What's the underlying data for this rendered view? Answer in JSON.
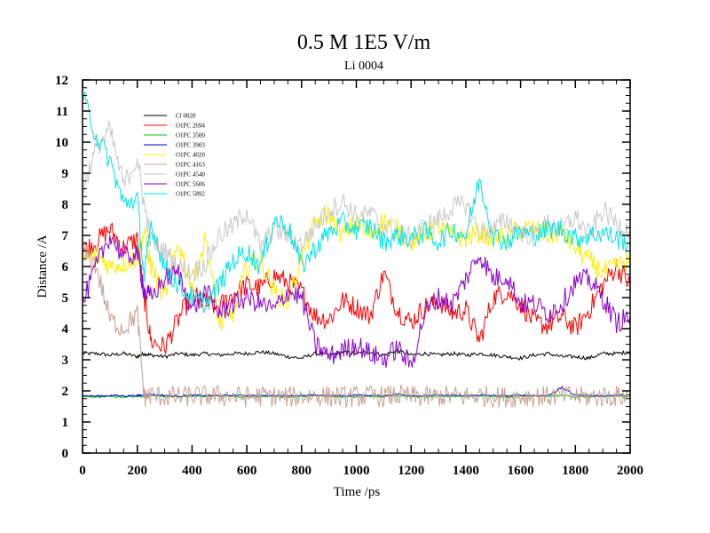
{
  "chart_data": {
    "type": "line",
    "title": "0.5 M 1E5 V/m",
    "subtitle": "Li 0004",
    "xlabel": "Time /ps",
    "ylabel": "Distance /A",
    "xlim": [
      0,
      2000
    ],
    "ylim": [
      0,
      12
    ],
    "xticks": [
      0,
      200,
      400,
      600,
      800,
      1000,
      1200,
      1400,
      1600,
      1800,
      2000
    ],
    "yticks": [
      0,
      1,
      2,
      3,
      4,
      5,
      6,
      7,
      8,
      9,
      10,
      11,
      12
    ],
    "grid": false,
    "legend_position": "top-left",
    "x": [
      0,
      50,
      100,
      150,
      200,
      225,
      250,
      300,
      350,
      400,
      450,
      500,
      550,
      600,
      650,
      700,
      750,
      800,
      850,
      900,
      950,
      1000,
      1050,
      1100,
      1150,
      1200,
      1250,
      1300,
      1350,
      1400,
      1450,
      1500,
      1550,
      1600,
      1650,
      1700,
      1750,
      1800,
      1850,
      1900,
      1950,
      2000
    ],
    "series": [
      {
        "name": "Cl 0028",
        "color": "#000000",
        "values": [
          3.2,
          3.2,
          3.15,
          3.2,
          3.1,
          3.2,
          3.15,
          3.1,
          3.2,
          3.15,
          3.2,
          3.15,
          3.2,
          3.2,
          3.25,
          3.2,
          3.1,
          3.05,
          3.2,
          3.15,
          3.25,
          3.2,
          3.25,
          3.15,
          3.3,
          3.15,
          3.2,
          3.15,
          3.2,
          3.15,
          3.2,
          3.15,
          3.1,
          3.05,
          3.15,
          3.2,
          3.1,
          3.1,
          3.05,
          3.2,
          3.2,
          3.25
        ]
      },
      {
        "name": "O1PC 2694",
        "color": "#ff0000",
        "values": [
          6.5,
          6.8,
          7.2,
          6.6,
          6.9,
          5.0,
          3.6,
          3.4,
          4.3,
          5.1,
          4.8,
          4.7,
          5.1,
          5.4,
          5.3,
          5.7,
          5.5,
          5.2,
          4.4,
          4.3,
          4.9,
          4.7,
          4.4,
          5.8,
          4.6,
          4.2,
          4.7,
          4.9,
          4.5,
          4.6,
          3.6,
          5.0,
          5.2,
          4.8,
          4.2,
          4.1,
          4.4,
          4.0,
          4.6,
          5.4,
          6.0,
          5.4
        ]
      },
      {
        "name": "O1PC 3500",
        "color": "#00cc00",
        "values": [
          1.82,
          1.8,
          1.82,
          1.8,
          1.82,
          1.82,
          1.85,
          1.82,
          1.8,
          1.83,
          1.82,
          1.85,
          1.82,
          1.8,
          1.83,
          1.82,
          1.8,
          1.82,
          1.85,
          1.82,
          1.8,
          1.82,
          1.83,
          1.82,
          1.85,
          1.82,
          1.8,
          1.82,
          1.83,
          1.82,
          1.85,
          1.82,
          1.8,
          1.82,
          1.83,
          1.82,
          1.85,
          1.82,
          1.8,
          1.82,
          1.83,
          1.82
        ]
      },
      {
        "name": "O1PC 3903",
        "color": "#0000cc",
        "values": [
          1.85,
          1.83,
          1.85,
          1.84,
          1.85,
          1.86,
          1.88,
          1.85,
          1.83,
          1.86,
          1.85,
          1.84,
          1.86,
          1.85,
          1.84,
          1.86,
          1.85,
          1.84,
          1.86,
          1.85,
          1.84,
          1.86,
          1.85,
          1.84,
          1.9,
          1.85,
          1.84,
          1.86,
          1.85,
          1.84,
          1.86,
          1.85,
          1.84,
          1.86,
          1.85,
          1.84,
          2.1,
          1.86,
          1.85,
          1.84,
          1.86,
          1.85
        ]
      },
      {
        "name": "O1PC 4020",
        "color": "#ffee00",
        "values": [
          6.2,
          6.4,
          6.0,
          6.1,
          6.3,
          7.1,
          6.0,
          5.0,
          6.8,
          5.4,
          6.9,
          4.1,
          4.5,
          6.0,
          6.2,
          5.2,
          4.8,
          6.3,
          7.4,
          7.7,
          7.0,
          7.4,
          7.0,
          7.5,
          7.2,
          6.8,
          7.0,
          7.3,
          7.0,
          6.9,
          7.1,
          6.9,
          7.0,
          7.2,
          7.2,
          7.0,
          7.1,
          6.6,
          6.2,
          5.8,
          6.0,
          6.2
        ]
      },
      {
        "name": "O1PC 4163",
        "color": "#c8a090",
        "values": [
          6.6,
          6.0,
          4.3,
          4.0,
          4.5,
          1.8,
          1.85,
          1.82,
          1.8,
          1.83,
          1.82,
          1.85,
          1.82,
          1.8,
          1.83,
          1.82,
          1.8,
          1.82,
          1.85,
          1.82,
          1.8,
          1.82,
          1.83,
          1.82,
          1.85,
          1.82,
          1.8,
          1.82,
          1.83,
          1.82,
          1.85,
          1.82,
          1.8,
          1.82,
          1.83,
          1.82,
          1.85,
          1.82,
          1.8,
          1.82,
          1.83,
          1.82
        ]
      },
      {
        "name": "O1PC 4540",
        "color": "#c8c8c8",
        "values": [
          8.5,
          9.8,
          10.4,
          8.6,
          9.5,
          8.0,
          6.8,
          6.5,
          6.0,
          5.8,
          6.1,
          7.0,
          7.3,
          7.8,
          6.6,
          7.2,
          7.0,
          6.7,
          7.3,
          7.8,
          8.1,
          7.6,
          7.7,
          7.3,
          7.1,
          6.9,
          7.3,
          7.5,
          7.9,
          8.0,
          7.1,
          7.2,
          7.5,
          7.1,
          7.0,
          7.4,
          7.2,
          7.6,
          7.0,
          7.8,
          7.4,
          7.2
        ]
      },
      {
        "name": "O1PC 5606",
        "color": "#8800cc",
        "values": [
          4.8,
          6.0,
          7.0,
          6.3,
          6.4,
          5.2,
          5.0,
          5.6,
          5.8,
          4.6,
          5.2,
          4.5,
          4.8,
          5.0,
          4.8,
          4.6,
          5.2,
          5.0,
          3.5,
          3.1,
          3.3,
          3.5,
          3.2,
          3.0,
          3.4,
          2.8,
          4.5,
          5.0,
          4.8,
          5.6,
          6.4,
          5.6,
          5.7,
          4.8,
          4.8,
          4.5,
          4.8,
          5.5,
          5.6,
          5.0,
          4.2,
          4.4
        ]
      },
      {
        "name": "O1PC 5892",
        "color": "#00e5e5",
        "values": [
          11.5,
          10.2,
          9.4,
          8.0,
          8.2,
          5.6,
          7.4,
          6.0,
          5.4,
          5.0,
          4.8,
          5.4,
          6.2,
          6.5,
          6.0,
          7.5,
          7.3,
          6.0,
          6.6,
          7.1,
          7.4,
          7.2,
          7.3,
          6.8,
          7.0,
          6.9,
          7.1,
          6.8,
          7.2,
          7.0,
          8.8,
          7.0,
          6.8,
          7.1,
          7.0,
          7.2,
          7.2,
          6.9,
          7.0,
          7.1,
          6.9,
          6.7
        ]
      }
    ]
  }
}
